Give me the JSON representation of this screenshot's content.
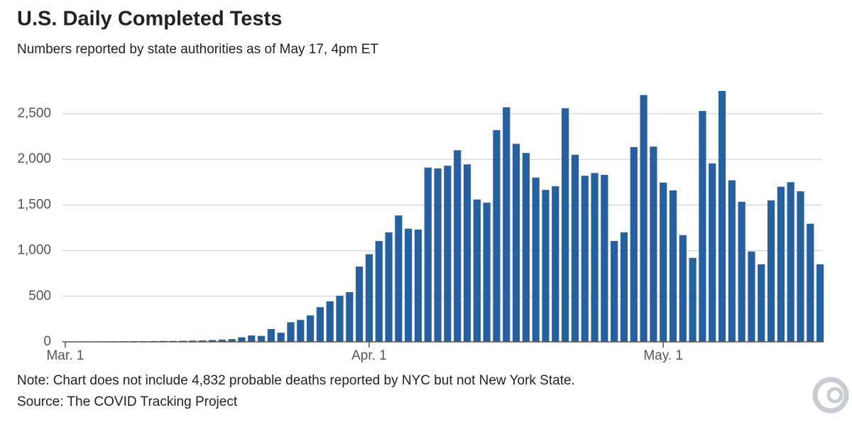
{
  "chart_data": {
    "type": "bar",
    "title": "U.S. Daily Completed Tests",
    "subtitle": "Numbers reported by state authorities as of May 17, 4pm ET",
    "note": "Note: Chart does not include 4,832 probable deaths reported by NYC but not New York State.",
    "source": "Source: The COVID Tracking Project",
    "categories": [
      "Mar. 1",
      null,
      null,
      null,
      null,
      null,
      null,
      null,
      null,
      null,
      null,
      null,
      null,
      null,
      null,
      null,
      null,
      null,
      null,
      null,
      null,
      null,
      null,
      null,
      null,
      null,
      null,
      null,
      null,
      null,
      null,
      "Apr. 1",
      null,
      null,
      null,
      null,
      null,
      null,
      null,
      null,
      null,
      null,
      null,
      null,
      null,
      null,
      null,
      null,
      null,
      null,
      null,
      null,
      null,
      null,
      null,
      null,
      null,
      null,
      null,
      null,
      null,
      "May. 1",
      null,
      null,
      null,
      null,
      null,
      null,
      null,
      null,
      null,
      null,
      null,
      null,
      null,
      null,
      null,
      null
    ],
    "values": [
      3,
      4,
      5,
      5,
      6,
      6,
      7,
      8,
      8,
      9,
      10,
      10,
      12,
      14,
      15,
      20,
      25,
      30,
      50,
      70,
      65,
      140,
      100,
      215,
      240,
      290,
      380,
      445,
      505,
      545,
      825,
      960,
      1105,
      1200,
      1385,
      1240,
      1230,
      1910,
      1900,
      1930,
      2100,
      1945,
      1560,
      1525,
      2320,
      2570,
      2170,
      2070,
      1800,
      1665,
      1705,
      2560,
      2050,
      1820,
      1850,
      1830,
      1105,
      1200,
      2135,
      2705,
      2140,
      1745,
      1660,
      1170,
      920,
      2530,
      1955,
      2750,
      1770,
      1535,
      990,
      850,
      1550,
      1700,
      1750,
      1650,
      1295,
      850
    ],
    "color": "#27609f",
    "ylim": [
      0,
      2800
    ],
    "yticks": [
      0,
      500,
      {
        "value": 1000,
        "label": "1,000"
      },
      {
        "value": 1500,
        "label": "1,500"
      },
      {
        "value": 2000,
        "label": "2,000"
      },
      {
        "value": 2500,
        "label": "2,500"
      }
    ],
    "grid": true
  }
}
